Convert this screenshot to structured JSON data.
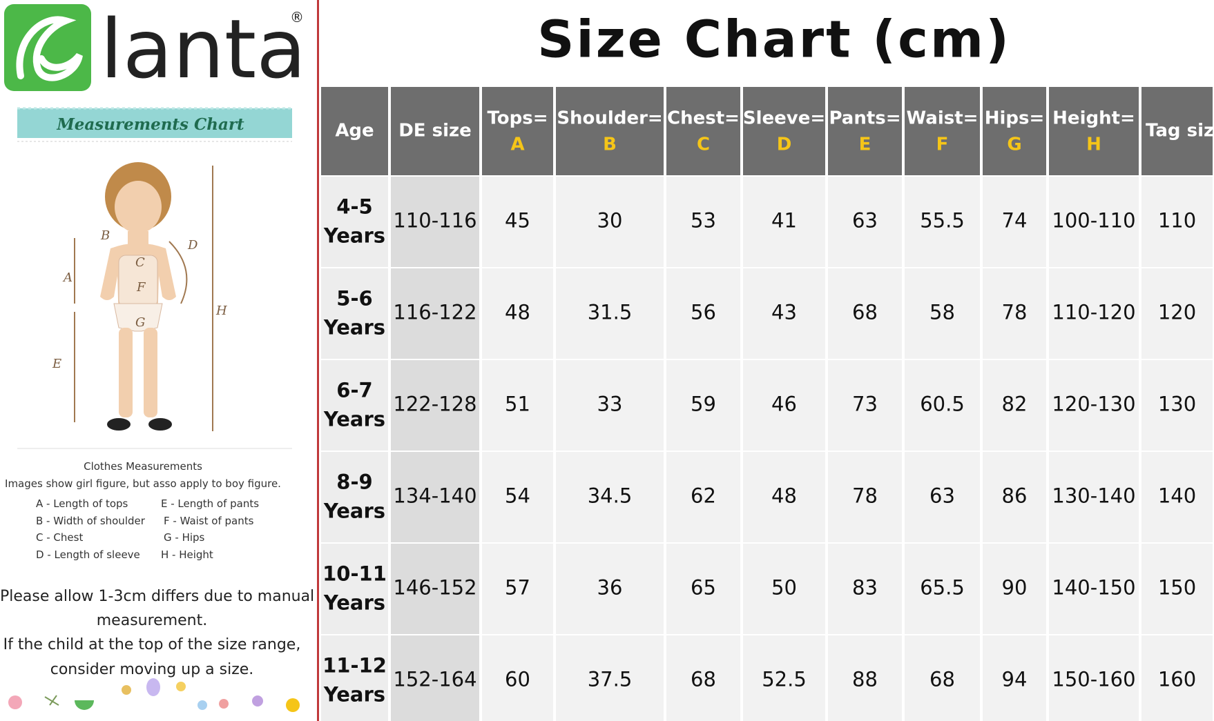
{
  "logo": {
    "text": "lanta",
    "mark": "®"
  },
  "banner": "Measurements Chart",
  "figure_labels": [
    "A",
    "B",
    "C",
    "D",
    "E",
    "F",
    "G",
    "H"
  ],
  "legend": {
    "title": "Clothes Measurements",
    "subtitle": "Images show girl figure, but asso apply to boy figure.",
    "items": [
      "A - Length of tops",
      "E - Length of pants",
      "B - Width of shoulder",
      "F - Waist of pants",
      "C - Chest",
      "G - Hips",
      "D - Length of sleeve",
      "H - Height"
    ]
  },
  "notes": [
    "Please allow 1-3cm differs due to manual",
    "measurement.",
    "If the child at the top of the size range,",
    "consider moving up a size."
  ],
  "table": {
    "title": "Size Chart (cm)",
    "headers": [
      {
        "name": "Age"
      },
      {
        "name": "DE size"
      },
      {
        "name": "Tops=",
        "letter": "A"
      },
      {
        "name": "Shoulder=",
        "letter": "B"
      },
      {
        "name": "Chest=",
        "letter": "C"
      },
      {
        "name": "Sleeve=",
        "letter": "D"
      },
      {
        "name": "Pants=",
        "letter": "E"
      },
      {
        "name": "Waist=",
        "letter": "F"
      },
      {
        "name": "Hips=",
        "letter": "G"
      },
      {
        "name": "Height=",
        "letter": "H"
      },
      {
        "name": "Tag size"
      }
    ],
    "rows": [
      {
        "age": [
          "4-5",
          "Years"
        ],
        "cells": [
          "110-116",
          45,
          30,
          53,
          41,
          63,
          55.5,
          74,
          "100-110",
          110
        ]
      },
      {
        "age": [
          "5-6",
          "Years"
        ],
        "cells": [
          "116-122",
          48,
          31.5,
          56,
          43,
          68,
          58,
          78,
          "110-120",
          120
        ]
      },
      {
        "age": [
          "6-7",
          "Years"
        ],
        "cells": [
          "122-128",
          51,
          33,
          59,
          46,
          73,
          60.5,
          82,
          "120-130",
          130
        ]
      },
      {
        "age": [
          "8-9",
          "Years"
        ],
        "cells": [
          "134-140",
          54,
          34.5,
          62,
          48,
          78,
          63,
          86,
          "130-140",
          140
        ]
      },
      {
        "age": [
          "10-11",
          "Years"
        ],
        "cells": [
          "146-152",
          57,
          36,
          65,
          50,
          83,
          65.5,
          90,
          "140-150",
          150
        ]
      },
      {
        "age": [
          "11-12",
          "Years"
        ],
        "cells": [
          "152-164",
          60,
          37.5,
          68,
          52.5,
          88,
          68,
          94,
          "150-160",
          160
        ]
      }
    ]
  }
}
